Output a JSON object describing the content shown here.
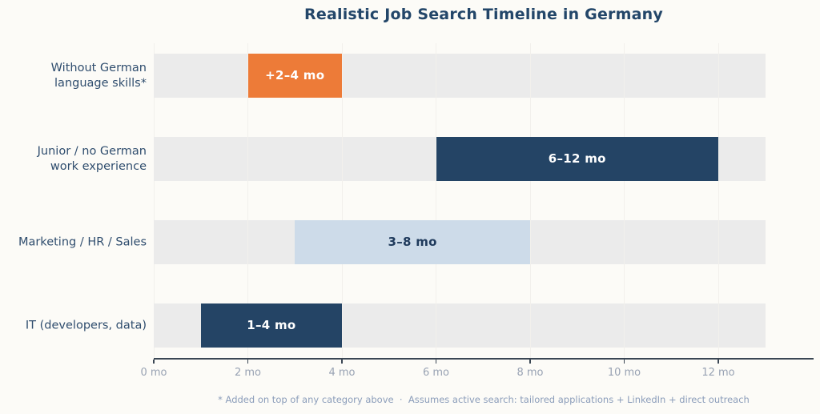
{
  "page": {
    "background": "#fcfbf7"
  },
  "chart_data": {
    "type": "bar",
    "subtype": "horizontal-range",
    "title": "Realistic Job Search Timeline in Germany",
    "categories": [
      {
        "lines": [
          "Without German",
          "language skills*"
        ]
      },
      {
        "lines": [
          "Junior / no German",
          "work experience"
        ]
      },
      {
        "lines": [
          "Marketing / HR / Sales"
        ]
      },
      {
        "lines": [
          "IT (developers, data)"
        ]
      }
    ],
    "series": [
      {
        "name": "Without German language skills*",
        "start": 2,
        "end": 4,
        "label": "+2–4 mo",
        "color": "#ed7b38",
        "label_color": "#ffffff"
      },
      {
        "name": "Junior / no German work experience",
        "start": 6,
        "end": 12,
        "label": "6–12 mo",
        "color": "#244465",
        "label_color": "#ffffff"
      },
      {
        "name": "Marketing / HR / Sales",
        "start": 3,
        "end": 8,
        "label": "3–8 mo",
        "color": "#cddbe9",
        "label_color": "#1f3a5c"
      },
      {
        "name": "IT (developers, data)",
        "start": 1,
        "end": 4,
        "label": "1–4 mo",
        "color": "#244465",
        "label_color": "#ffffff"
      }
    ],
    "track": {
      "min": 0,
      "max": 13,
      "color": "#ebebeb"
    },
    "xlim": [
      0,
      14
    ],
    "xlabel": "",
    "ylabel": "",
    "grid": true,
    "legend": "none",
    "x_ticks": [
      {
        "value": 0,
        "label": "0 mo"
      },
      {
        "value": 2,
        "label": "2 mo"
      },
      {
        "value": 4,
        "label": "4 mo"
      },
      {
        "value": 6,
        "label": "6 mo"
      },
      {
        "value": 8,
        "label": "8 mo"
      },
      {
        "value": 10,
        "label": "10 mo"
      },
      {
        "value": 12,
        "label": "12 mo"
      }
    ],
    "footnote": "* Added on top of any category above  ·  Assumes active search: tailored applications + LinkedIn + direct outreach",
    "colors": {
      "title": "#234669",
      "category_label": "#2f4d6e",
      "tick_label": "#98a2b3",
      "axis": "#3b4754",
      "grid": "#f2f0ec",
      "footnote": "#8b9dba",
      "navy": "#244465",
      "orange": "#ed7b38",
      "light_blue": "#cddbe9"
    }
  }
}
